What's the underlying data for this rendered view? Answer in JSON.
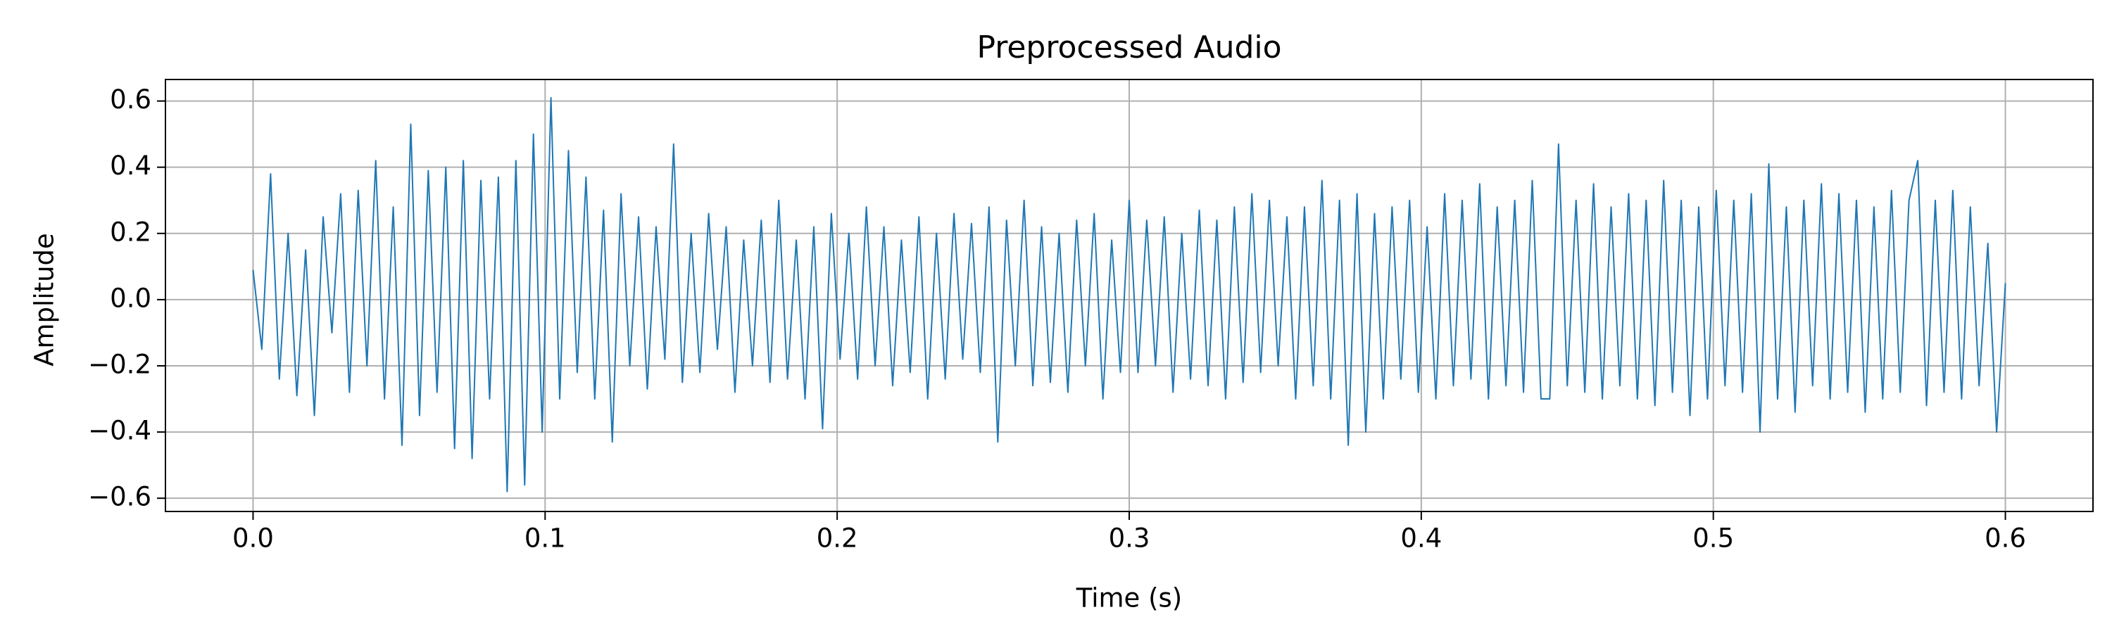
{
  "chart_data": {
    "type": "line",
    "title": "Preprocessed Audio",
    "x_label": "Time (s)",
    "y_label": "Amplitude",
    "color": "#1f77b4",
    "grid": true,
    "xlim": [
      -0.03,
      0.63
    ],
    "ylim": [
      -0.64,
      0.665
    ],
    "xticks": [
      {
        "value": 0,
        "label": "0.0"
      },
      0.1,
      0.2,
      0.3,
      0.4,
      0.5,
      0.6
    ],
    "yticks": [
      {
        "value": -0.6,
        "label": "−0.6"
      },
      {
        "value": -0.4,
        "label": "−0.4"
      },
      {
        "value": -0.2,
        "label": "−0.2"
      },
      {
        "value": 0,
        "label": "0.0"
      },
      0.2,
      0.4,
      0.6
    ],
    "x": [
      0,
      0.003,
      0.006,
      0.009,
      0.012,
      0.015,
      0.018,
      0.021,
      0.024,
      0.027,
      0.03,
      0.033,
      0.036,
      0.039,
      0.042,
      0.045,
      0.048,
      0.051,
      0.054,
      0.057,
      0.06,
      0.063,
      0.066,
      0.069,
      0.072,
      0.075,
      0.078,
      0.081,
      0.084,
      0.087,
      0.09,
      0.093,
      0.096,
      0.099,
      0.102,
      0.105,
      0.108,
      0.111,
      0.114,
      0.117,
      0.12,
      0.123,
      0.126,
      0.129,
      0.132,
      0.135,
      0.138,
      0.141,
      0.144,
      0.147,
      0.15,
      0.153,
      0.156,
      0.159,
      0.162,
      0.165,
      0.168,
      0.171,
      0.174,
      0.177,
      0.18,
      0.183,
      0.186,
      0.189,
      0.192,
      0.195,
      0.198,
      0.201,
      0.204,
      0.207,
      0.21,
      0.213,
      0.216,
      0.219,
      0.222,
      0.225,
      0.228,
      0.231,
      0.234,
      0.237,
      0.24,
      0.243,
      0.246,
      0.249,
      0.252,
      0.255,
      0.258,
      0.261,
      0.264,
      0.267,
      0.27,
      0.273,
      0.276,
      0.279,
      0.282,
      0.285,
      0.288,
      0.291,
      0.294,
      0.297,
      0.3,
      0.303,
      0.306,
      0.309,
      0.312,
      0.315,
      0.318,
      0.321,
      0.324,
      0.327,
      0.33,
      0.333,
      0.336,
      0.339,
      0.342,
      0.345,
      0.348,
      0.351,
      0.354,
      0.357,
      0.36,
      0.363,
      0.366,
      0.369,
      0.372,
      0.375,
      0.378,
      0.381,
      0.384,
      0.387,
      0.39,
      0.393,
      0.396,
      0.399,
      0.402,
      0.405,
      0.408,
      0.411,
      0.414,
      0.417,
      0.42,
      0.423,
      0.426,
      0.429,
      0.432,
      0.435,
      0.438,
      0.441,
      0.444,
      0.447,
      0.45,
      0.453,
      0.456,
      0.459,
      0.462,
      0.465,
      0.468,
      0.471,
      0.474,
      0.477,
      0.48,
      0.483,
      0.486,
      0.489,
      0.492,
      0.495,
      0.498,
      0.501,
      0.504,
      0.507,
      0.51,
      0.513,
      0.516,
      0.519,
      0.522,
      0.525,
      0.528,
      0.531,
      0.534,
      0.537,
      0.54,
      0.543,
      0.546,
      0.549,
      0.552,
      0.555,
      0.558,
      0.561,
      0.564,
      0.567,
      0.57,
      0.573,
      0.576,
      0.579,
      0.582,
      0.585,
      0.588,
      0.591,
      0.594,
      0.597,
      0.6
    ],
    "values": [
      0.09,
      -0.15,
      0.38,
      -0.24,
      0.2,
      -0.29,
      0.15,
      -0.35,
      0.25,
      -0.1,
      0.32,
      -0.28,
      0.33,
      -0.2,
      0.42,
      -0.3,
      0.28,
      -0.44,
      0.53,
      -0.35,
      0.39,
      -0.28,
      0.4,
      -0.45,
      0.42,
      -0.48,
      0.36,
      -0.3,
      0.37,
      -0.58,
      0.42,
      -0.56,
      0.5,
      -0.4,
      0.61,
      -0.3,
      0.45,
      -0.22,
      0.37,
      -0.3,
      0.27,
      -0.43,
      0.32,
      -0.2,
      0.25,
      -0.27,
      0.22,
      -0.18,
      0.47,
      -0.25,
      0.2,
      -0.22,
      0.26,
      -0.15,
      0.22,
      -0.28,
      0.18,
      -0.2,
      0.24,
      -0.25,
      0.3,
      -0.24,
      0.18,
      -0.3,
      0.22,
      -0.39,
      0.26,
      -0.18,
      0.2,
      -0.24,
      0.28,
      -0.2,
      0.22,
      -0.26,
      0.18,
      -0.22,
      0.25,
      -0.3,
      0.2,
      -0.24,
      0.26,
      -0.18,
      0.23,
      -0.22,
      0.28,
      -0.43,
      0.24,
      -0.2,
      0.3,
      -0.26,
      0.22,
      -0.25,
      0.2,
      -0.28,
      0.24,
      -0.2,
      0.26,
      -0.3,
      0.18,
      -0.22,
      0.3,
      -0.22,
      0.24,
      -0.2,
      0.25,
      -0.28,
      0.2,
      -0.24,
      0.27,
      -0.26,
      0.24,
      -0.3,
      0.28,
      -0.25,
      0.32,
      -0.22,
      0.3,
      -0.2,
      0.25,
      -0.3,
      0.28,
      -0.26,
      0.36,
      -0.3,
      0.3,
      -0.44,
      0.32,
      -0.4,
      0.26,
      -0.3,
      0.28,
      -0.24,
      0.3,
      -0.28,
      0.22,
      -0.3,
      0.32,
      -0.26,
      0.3,
      -0.24,
      0.35,
      -0.3,
      0.28,
      -0.26,
      0.3,
      -0.28,
      0.36,
      -0.3,
      -0.3,
      0.47,
      -0.26,
      0.3,
      -0.28,
      0.35,
      -0.3,
      0.28,
      -0.26,
      0.32,
      -0.3,
      0.3,
      -0.32,
      0.36,
      -0.28,
      0.3,
      -0.35,
      0.28,
      -0.3,
      0.33,
      -0.26,
      0.3,
      -0.28,
      0.32,
      -0.4,
      0.41,
      -0.3,
      0.28,
      -0.34,
      0.3,
      -0.26,
      0.35,
      -0.3,
      0.32,
      -0.28,
      0.3,
      -0.34,
      0.28,
      -0.3,
      0.33,
      -0.28,
      0.3,
      0.42,
      -0.32,
      0.3,
      -0.28,
      0.33,
      -0.3,
      0.28,
      -0.26,
      0.17,
      -0.4,
      0.05
    ]
  }
}
